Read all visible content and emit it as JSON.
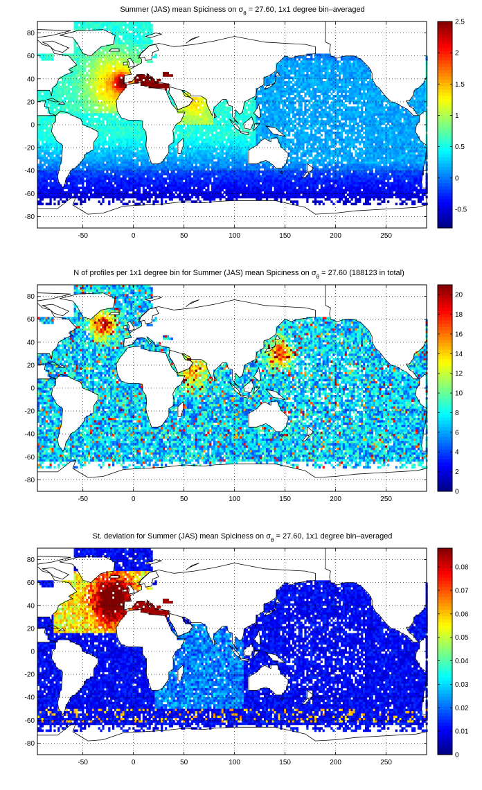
{
  "chart_data": [
    {
      "type": "heatmap",
      "title_pre": "Summer (JAS) mean Spiciness on ",
      "title_sym": "σ",
      "title_sub": "θ",
      "title_post": " = 27.60, 1x1 degree bin–averaged",
      "xticks": [
        -50,
        0,
        50,
        100,
        150,
        200,
        250
      ],
      "yticks": [
        80,
        60,
        40,
        20,
        0,
        -20,
        -40,
        -60,
        -80
      ],
      "xlim": [
        -95,
        290
      ],
      "ylim": [
        -90,
        90
      ],
      "grid": "dotted",
      "colormap": "jet",
      "clim": [
        -0.8,
        2.5
      ],
      "cticks": [
        2.5,
        2,
        1.5,
        1,
        0.5,
        0,
        -0.5
      ],
      "field": "spiciness"
    },
    {
      "type": "heatmap",
      "title_pre": "N of profiles per 1x1 degree bin for Summer (JAS) mean Spiciness on ",
      "title_sym": "σ",
      "title_sub": "θ",
      "title_post": " = 27.60 (188123 in total)",
      "xticks": [
        -50,
        0,
        50,
        100,
        150,
        200,
        250
      ],
      "yticks": [
        80,
        60,
        40,
        20,
        0,
        -20,
        -40,
        -60,
        -80
      ],
      "xlim": [
        -95,
        290
      ],
      "ylim": [
        -90,
        90
      ],
      "grid": "dotted",
      "colormap": "jet",
      "clim": [
        0,
        21
      ],
      "cticks": [
        20,
        18,
        16,
        14,
        12,
        10,
        8,
        6,
        4,
        2,
        0
      ],
      "field": "count"
    },
    {
      "type": "heatmap",
      "title_pre": "St. deviation for Summer (JAS) mean Spiciness on ",
      "title_sym": "σ",
      "title_sub": "θ",
      "title_post": " = 27.60, 1x1 degree bin–averaged",
      "xticks": [
        -50,
        0,
        50,
        100,
        150,
        200,
        250
      ],
      "yticks": [
        80,
        60,
        40,
        20,
        0,
        -20,
        -40,
        -60,
        -80
      ],
      "xlim": [
        -95,
        290
      ],
      "ylim": [
        -90,
        90
      ],
      "grid": "dotted",
      "colormap": "jet",
      "clim": [
        0,
        0.088
      ],
      "cticks": [
        0.08,
        0.07,
        0.06,
        0.05,
        0.04,
        0.03,
        0.02,
        0.01,
        0
      ],
      "field": "stdev"
    }
  ]
}
